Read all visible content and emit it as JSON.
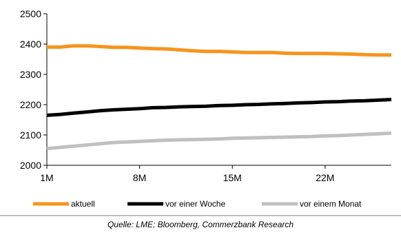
{
  "chart_data": {
    "type": "line",
    "x_ticks": [
      "1M",
      "8M",
      "15M",
      "22M"
    ],
    "x_tick_positions": [
      1,
      8,
      15,
      22
    ],
    "xlim": [
      1,
      27
    ],
    "ylim": [
      2000,
      2500
    ],
    "y_ticks": [
      2000,
      2100,
      2200,
      2300,
      2400,
      2500
    ],
    "grid": false,
    "legend_position": "bottom",
    "series": [
      {
        "name": "aktuell",
        "color": "#f7941d",
        "points": [
          [
            1,
            2390
          ],
          [
            2,
            2390
          ],
          [
            3,
            2394
          ],
          [
            4,
            2394
          ],
          [
            5,
            2392
          ],
          [
            6,
            2389
          ],
          [
            7,
            2389
          ],
          [
            8,
            2387
          ],
          [
            9,
            2385
          ],
          [
            10,
            2384
          ],
          [
            11,
            2381
          ],
          [
            12,
            2378
          ],
          [
            13,
            2376
          ],
          [
            14,
            2376
          ],
          [
            15,
            2374
          ],
          [
            16,
            2372
          ],
          [
            17,
            2372
          ],
          [
            18,
            2372
          ],
          [
            19,
            2370
          ],
          [
            20,
            2369
          ],
          [
            21,
            2369
          ],
          [
            22,
            2369
          ],
          [
            23,
            2368
          ],
          [
            24,
            2367
          ],
          [
            25,
            2365
          ],
          [
            26,
            2364
          ],
          [
            27,
            2364
          ]
        ]
      },
      {
        "name": "vor einer Woche",
        "color": "#000000",
        "points": [
          [
            1,
            2165
          ],
          [
            2,
            2168
          ],
          [
            3,
            2172
          ],
          [
            4,
            2176
          ],
          [
            5,
            2180
          ],
          [
            6,
            2183
          ],
          [
            7,
            2185
          ],
          [
            8,
            2187
          ],
          [
            9,
            2190
          ],
          [
            10,
            2191
          ],
          [
            11,
            2193
          ],
          [
            12,
            2194
          ],
          [
            13,
            2195
          ],
          [
            14,
            2197
          ],
          [
            15,
            2198
          ],
          [
            16,
            2200
          ],
          [
            17,
            2201
          ],
          [
            18,
            2203
          ],
          [
            19,
            2204
          ],
          [
            20,
            2206
          ],
          [
            21,
            2207
          ],
          [
            22,
            2209
          ],
          [
            23,
            2210
          ],
          [
            24,
            2212
          ],
          [
            25,
            2213
          ],
          [
            26,
            2215
          ],
          [
            27,
            2217
          ]
        ]
      },
      {
        "name": "vor einem Monat",
        "color": "#c0c0c0",
        "points": [
          [
            1,
            2055
          ],
          [
            2,
            2059
          ],
          [
            3,
            2063
          ],
          [
            4,
            2067
          ],
          [
            5,
            2071
          ],
          [
            6,
            2075
          ],
          [
            7,
            2077
          ],
          [
            8,
            2079
          ],
          [
            9,
            2081
          ],
          [
            10,
            2083
          ],
          [
            11,
            2084
          ],
          [
            12,
            2085
          ],
          [
            13,
            2086
          ],
          [
            14,
            2087
          ],
          [
            15,
            2089
          ],
          [
            16,
            2090
          ],
          [
            17,
            2091
          ],
          [
            18,
            2092
          ],
          [
            19,
            2093
          ],
          [
            20,
            2094
          ],
          [
            21,
            2095
          ],
          [
            22,
            2097
          ],
          [
            23,
            2098
          ],
          [
            24,
            2100
          ],
          [
            25,
            2102
          ],
          [
            26,
            2104
          ],
          [
            27,
            2106
          ]
        ]
      }
    ]
  },
  "source": "Quelle: LME; Bloomberg, Commerzbank Research",
  "divider_color": "#bfbfbf"
}
